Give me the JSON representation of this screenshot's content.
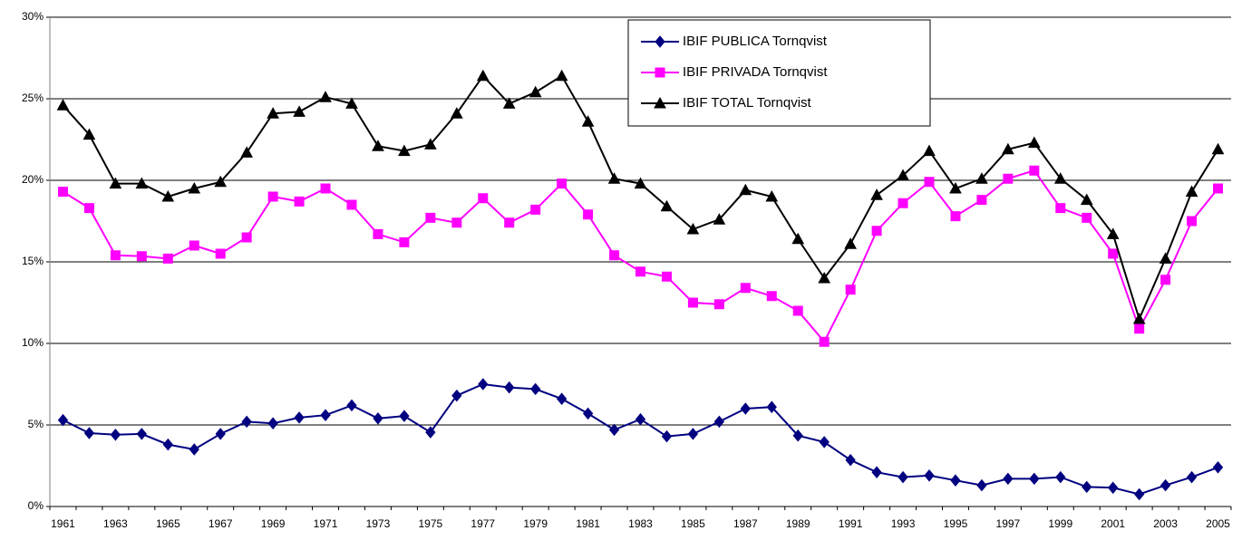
{
  "chart_data": {
    "type": "line",
    "categories": [
      "1961",
      null,
      "1963",
      null,
      "1965",
      null,
      "1967",
      null,
      "1969",
      null,
      "1971",
      null,
      "1973",
      null,
      "1975",
      null,
      "1977",
      null,
      "1979",
      null,
      "1981",
      null,
      "1983",
      null,
      "1985",
      null,
      "1987",
      null,
      "1989",
      null,
      "1991",
      null,
      "1993",
      null,
      "1995",
      null,
      "1997",
      null,
      "1999",
      null,
      "2001",
      null,
      "2003",
      null,
      "2005"
    ],
    "series": [
      {
        "name": "IBIF PUBLICA Tornqvist",
        "color": "#000080",
        "marker": "diamond",
        "values": [
          5.3,
          4.5,
          4.4,
          4.45,
          3.8,
          3.5,
          4.45,
          5.2,
          5.1,
          5.45,
          5.6,
          6.2,
          5.4,
          5.55,
          4.55,
          6.8,
          7.5,
          7.3,
          7.2,
          6.6,
          5.7,
          4.7,
          5.35,
          4.3,
          4.45,
          5.2,
          6.0,
          6.1,
          4.35,
          3.95,
          2.85,
          2.1,
          1.8,
          1.9,
          1.6,
          1.3,
          1.7,
          1.7,
          1.8,
          1.2,
          1.15,
          0.75,
          1.3,
          1.8,
          2.4
        ]
      },
      {
        "name": "IBIF PRIVADA Tornqvist",
        "color": "#ff00ff",
        "marker": "square",
        "values": [
          19.3,
          18.3,
          15.4,
          15.35,
          15.2,
          16.0,
          15.5,
          16.5,
          19.0,
          18.7,
          19.5,
          18.5,
          16.7,
          16.2,
          17.7,
          17.4,
          18.9,
          17.4,
          18.2,
          19.8,
          17.9,
          15.4,
          14.4,
          14.1,
          12.5,
          12.4,
          13.4,
          12.9,
          12.0,
          10.1,
          13.3,
          16.9,
          18.6,
          19.9,
          17.8,
          18.8,
          20.1,
          20.6,
          18.3,
          17.7,
          15.5,
          10.9,
          13.9,
          17.5,
          19.5
        ]
      },
      {
        "name": "IBIF TOTAL Tornqvist",
        "color": "#000000",
        "marker": "triangle",
        "values": [
          24.6,
          22.8,
          19.8,
          19.8,
          19.0,
          19.5,
          19.9,
          21.7,
          24.1,
          24.2,
          25.1,
          24.7,
          22.1,
          21.8,
          22.2,
          24.1,
          26.4,
          24.7,
          25.4,
          26.4,
          23.6,
          20.1,
          19.8,
          18.4,
          17.0,
          17.6,
          19.4,
          19.0,
          16.4,
          14.0,
          16.1,
          19.1,
          20.3,
          21.8,
          19.5,
          20.1,
          21.9,
          22.3,
          20.1,
          18.8,
          16.7,
          11.5,
          15.2,
          19.3,
          21.9
        ]
      }
    ],
    "ylim": [
      0,
      30
    ],
    "yticks": [
      {
        "value": 0,
        "label": "0%"
      },
      {
        "value": 5,
        "label": "5%"
      },
      {
        "value": 10,
        "label": "10%"
      },
      {
        "value": 15,
        "label": "15%"
      },
      {
        "value": 20,
        "label": "20%"
      },
      {
        "value": 25,
        "label": "25%"
      },
      {
        "value": 30,
        "label": "30%"
      }
    ],
    "grid": true,
    "legend": "top-right"
  }
}
